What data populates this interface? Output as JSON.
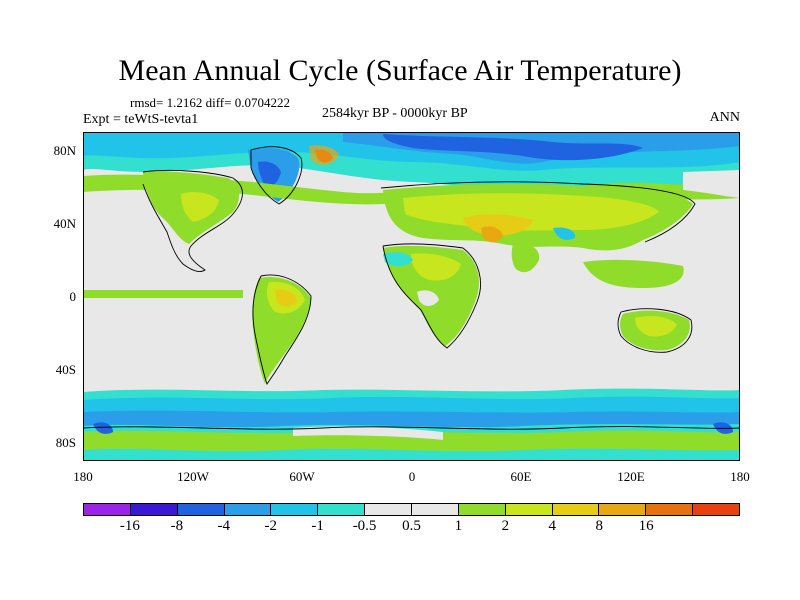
{
  "title": "Mean Annual Cycle (Surface Air Temperature)",
  "stats": "rmsd= 1.2162 diff= 0.0704222",
  "experiment": "Expt = teWtS-tevta1",
  "period": "2584kyr BP - 0000kyr BP",
  "season": "ANN",
  "lat_labels": [
    "80N",
    "40N",
    "0",
    "40S",
    "80S"
  ],
  "lon_labels": [
    "180",
    "120W",
    "60W",
    "0",
    "60E",
    "120E",
    "180"
  ],
  "colorbar": {
    "colors": [
      "#9a25e6",
      "#3a19d6",
      "#1f63e0",
      "#2a9ee8",
      "#22c3e8",
      "#33dfcf",
      "#e8e8e8",
      "#e8e8e8",
      "#8fdc2a",
      "#c8e61e",
      "#e6cc14",
      "#e8a812",
      "#e6720f",
      "#e8400f"
    ],
    "labels": [
      "-16",
      "-8",
      "-4",
      "-2",
      "-1",
      "-0.5",
      "0.5",
      "1",
      "2",
      "4",
      "8",
      "16"
    ]
  },
  "colors": {
    "neutral": "#e8e8e8",
    "green": "#8fdc2a",
    "yellow_green": "#c8e61e",
    "gold": "#e6cc14",
    "orange": "#e8a812",
    "cyan": "#33dfcf",
    "light_blue": "#22c3e8",
    "blue": "#2a9ee8",
    "dark_blue": "#1f63e0",
    "red": "#e8400f"
  }
}
